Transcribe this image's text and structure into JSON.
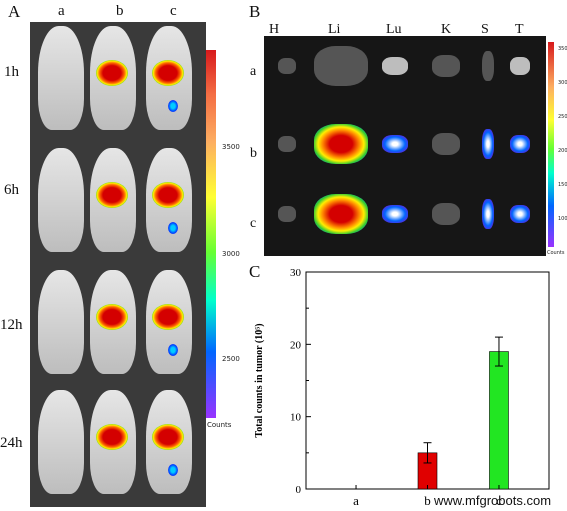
{
  "panels": {
    "a": "A",
    "b": "B",
    "c": "C"
  },
  "panelA": {
    "columns": [
      "a",
      "b",
      "c"
    ],
    "rows": [
      "1h",
      "6h",
      "12h",
      "24h"
    ],
    "colorbar": {
      "ticks": [
        "3500",
        "3000",
        "2500"
      ],
      "unit": "Counts",
      "colors": [
        "#d7191c",
        "#fdae61",
        "#ffff33",
        "#66ff33",
        "#00ffcc",
        "#0066ff",
        "#9933ff"
      ]
    }
  },
  "panelB": {
    "organs": [
      "H",
      "Li",
      "Lu",
      "K",
      "S",
      "T"
    ],
    "rows": [
      "a",
      "b",
      "c"
    ],
    "colorbar": {
      "ticks": [
        "3500",
        "3000",
        "2500",
        "2000",
        "1500",
        "1000"
      ],
      "unit": "Counts"
    }
  },
  "chart_data": {
    "type": "bar",
    "categories": [
      "a",
      "b",
      "c"
    ],
    "values": [
      0,
      5,
      19
    ],
    "errors": [
      0,
      1.4,
      2.0
    ],
    "colors": [
      "#e00000",
      "#e00000",
      "#22e622"
    ],
    "ylabel": "Total counts in tumor (10⁵)",
    "ylim": [
      0,
      30
    ],
    "yticks": [
      0,
      10,
      20,
      30
    ]
  },
  "watermark": "www.mfgrobots.com"
}
